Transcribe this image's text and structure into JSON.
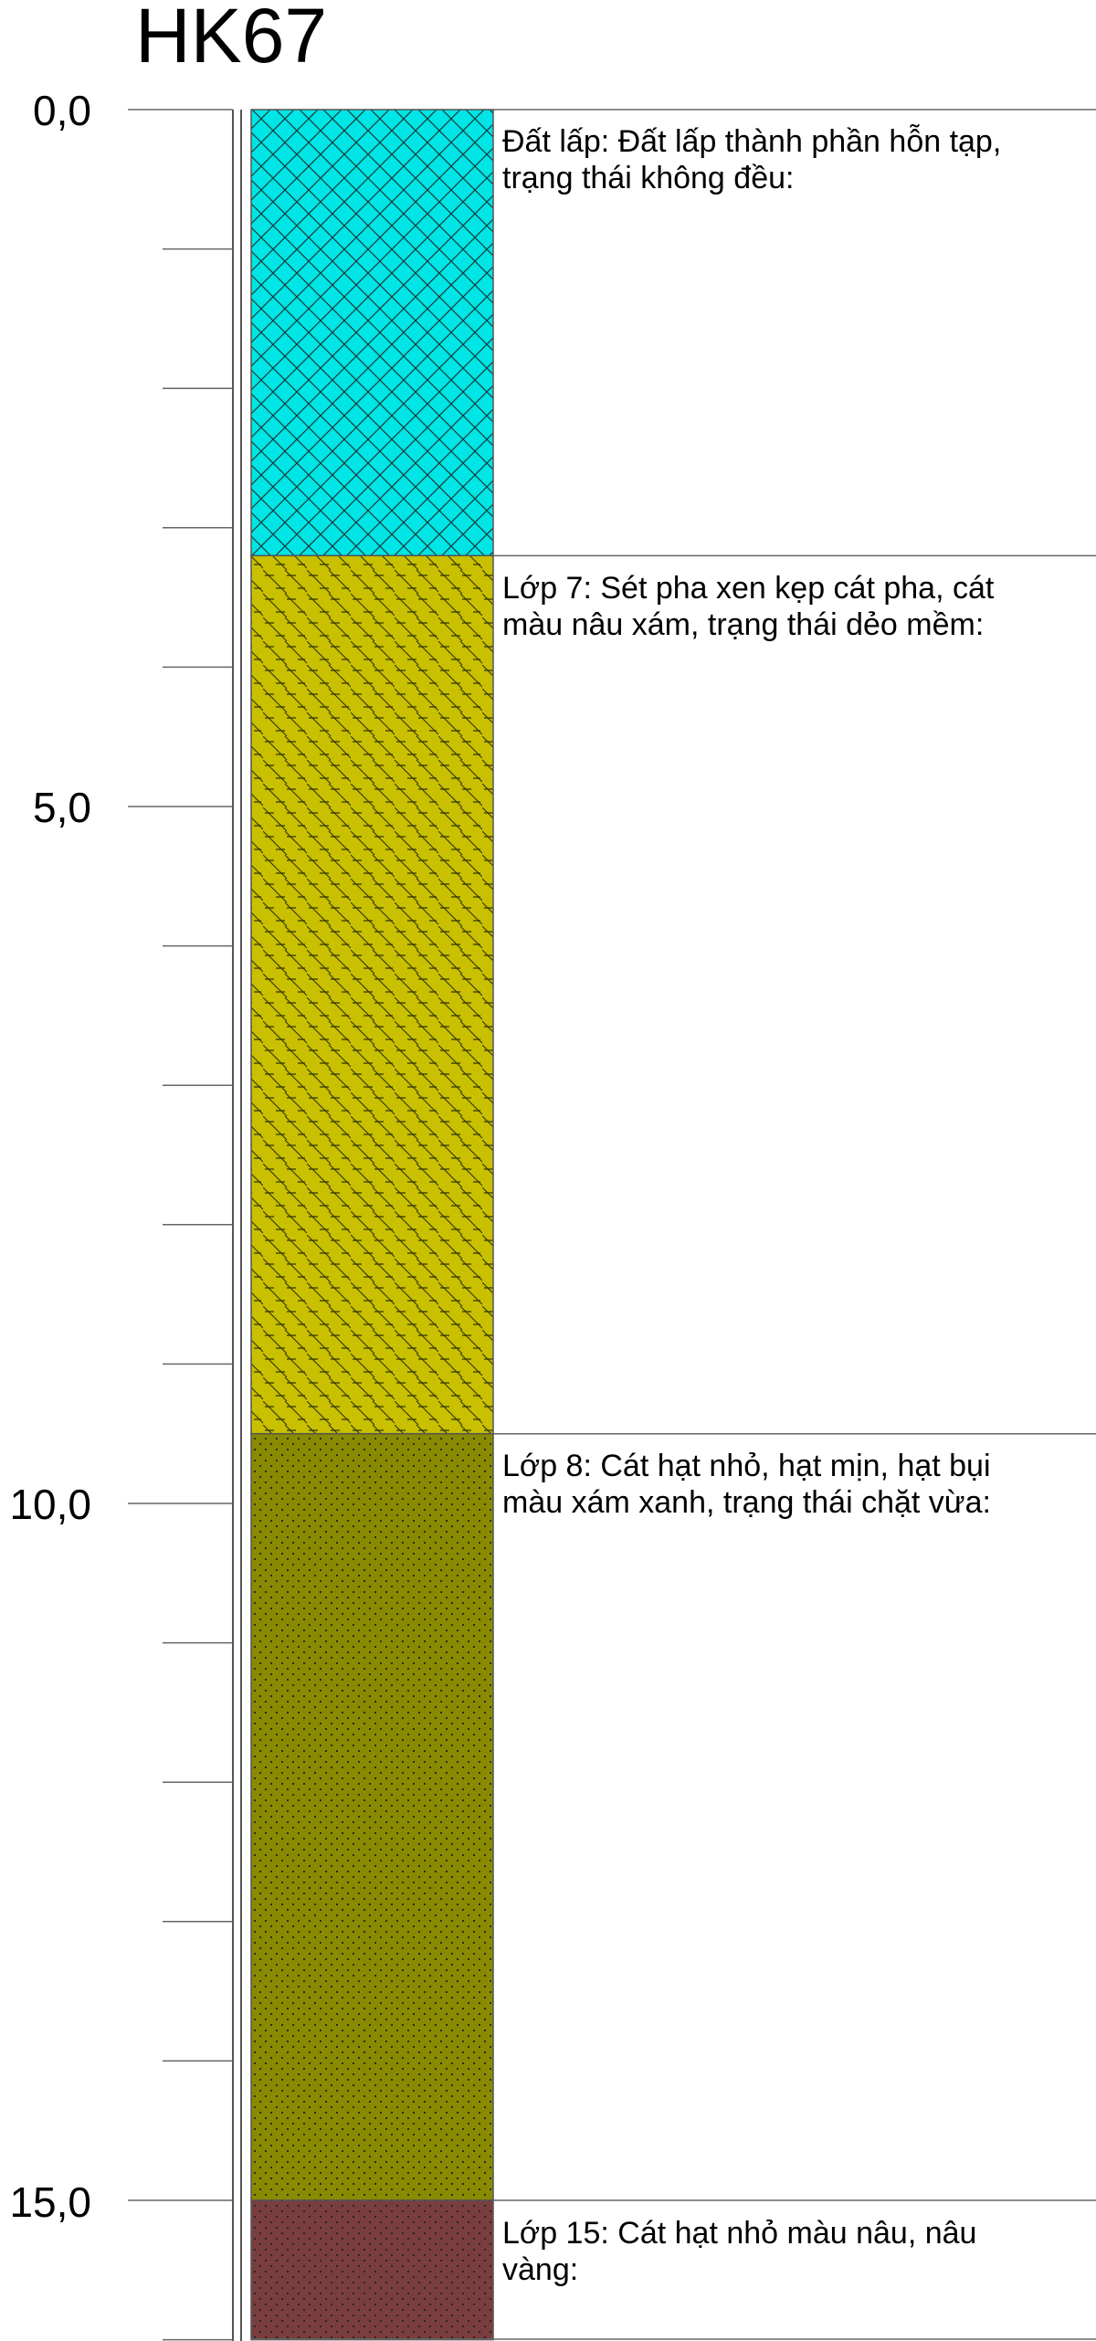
{
  "borehole": {
    "title": "HK67",
    "depth_labels": [
      "0,0",
      "5,0",
      "10,0",
      "15,0"
    ]
  },
  "layers": [
    {
      "top": 0.0,
      "bottom": 3.2,
      "lines": [
        "Đất lấp: Đất lấp thành phần hỗn tạp,",
        "trạng thái không đều:"
      ],
      "color": "#00e5e5",
      "pattern": "crosshatch"
    },
    {
      "top": 3.2,
      "bottom": 9.5,
      "lines": [
        "Lớp 7: Sét pha xen kẹp cát pha, cát",
        "màu nâu xám, trạng thái dẻo mềm:"
      ],
      "color": "#c8c000",
      "pattern": "dash-slash"
    },
    {
      "top": 9.5,
      "bottom": 15.0,
      "lines": [
        "Lớp 8: Cát hạt nhỏ, hạt mịn, hạt bụi",
        "màu xám xanh, trạng thái chặt vừa:"
      ],
      "color": "#8a8a00",
      "pattern": "dots"
    },
    {
      "top": 15.0,
      "bottom": 16.0,
      "lines": [
        "Lớp 15: Cát hạt nhỏ màu nâu, nâu",
        "vàng:"
      ],
      "color": "#7a3e3e",
      "pattern": "dots"
    }
  ]
}
